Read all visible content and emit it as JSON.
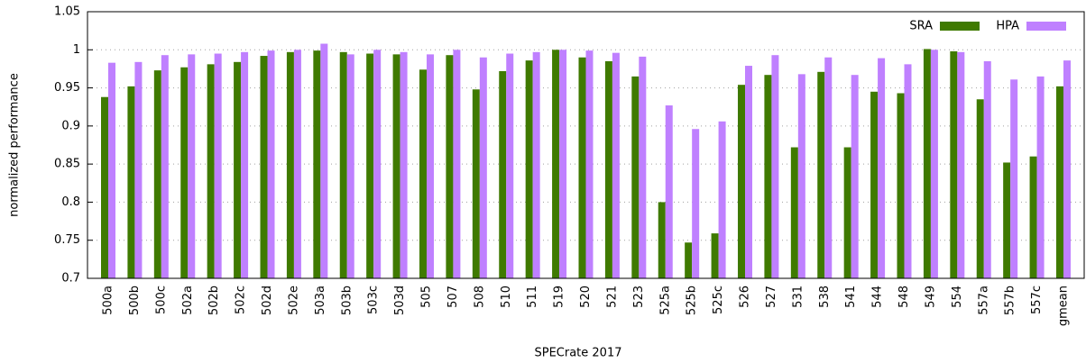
{
  "chart_data": {
    "type": "bar",
    "xlabel": "SPECrate 2017",
    "ylabel": "normalized performance",
    "categories": [
      "500a",
      "500b",
      "500c",
      "502a",
      "502b",
      "502c",
      "502d",
      "502e",
      "503a",
      "503b",
      "503c",
      "503d",
      "505",
      "507",
      "508",
      "510",
      "511",
      "519",
      "520",
      "521",
      "523",
      "525a",
      "525b",
      "525c",
      "526",
      "527",
      "531",
      "538",
      "541",
      "544",
      "548",
      "549",
      "554",
      "557a",
      "557b",
      "557c",
      "gmean"
    ],
    "series": [
      {
        "name": "SRA",
        "color": "#3f7a00",
        "values": [
          0.938,
          0.952,
          0.973,
          0.977,
          0.981,
          0.984,
          0.992,
          0.997,
          0.999,
          0.997,
          0.995,
          0.994,
          0.974,
          0.993,
          0.948,
          0.972,
          0.986,
          1.0,
          0.99,
          0.985,
          0.965,
          0.8,
          0.747,
          0.759,
          0.954,
          0.967,
          0.872,
          0.971,
          0.872,
          0.945,
          0.943,
          1.001,
          0.998,
          0.935,
          0.852,
          0.86,
          0.952
        ]
      },
      {
        "name": "HPA",
        "color": "#bf80ff",
        "values": [
          0.983,
          0.984,
          0.993,
          0.994,
          0.995,
          0.997,
          0.999,
          1.0,
          1.008,
          0.994,
          1.0,
          0.997,
          0.994,
          1.0,
          0.99,
          0.995,
          0.997,
          1.0,
          0.999,
          0.996,
          0.991,
          0.927,
          0.896,
          0.906,
          0.979,
          0.993,
          0.968,
          0.99,
          0.967,
          0.989,
          0.981,
          1.0,
          0.997,
          0.985,
          0.961,
          0.965,
          0.986
        ]
      }
    ],
    "ylim": [
      0.7,
      1.05
    ],
    "yticks": [
      0.7,
      0.75,
      0.8,
      0.85,
      0.9,
      0.95,
      1,
      1.05
    ],
    "grid": true,
    "legend": "top-right"
  }
}
